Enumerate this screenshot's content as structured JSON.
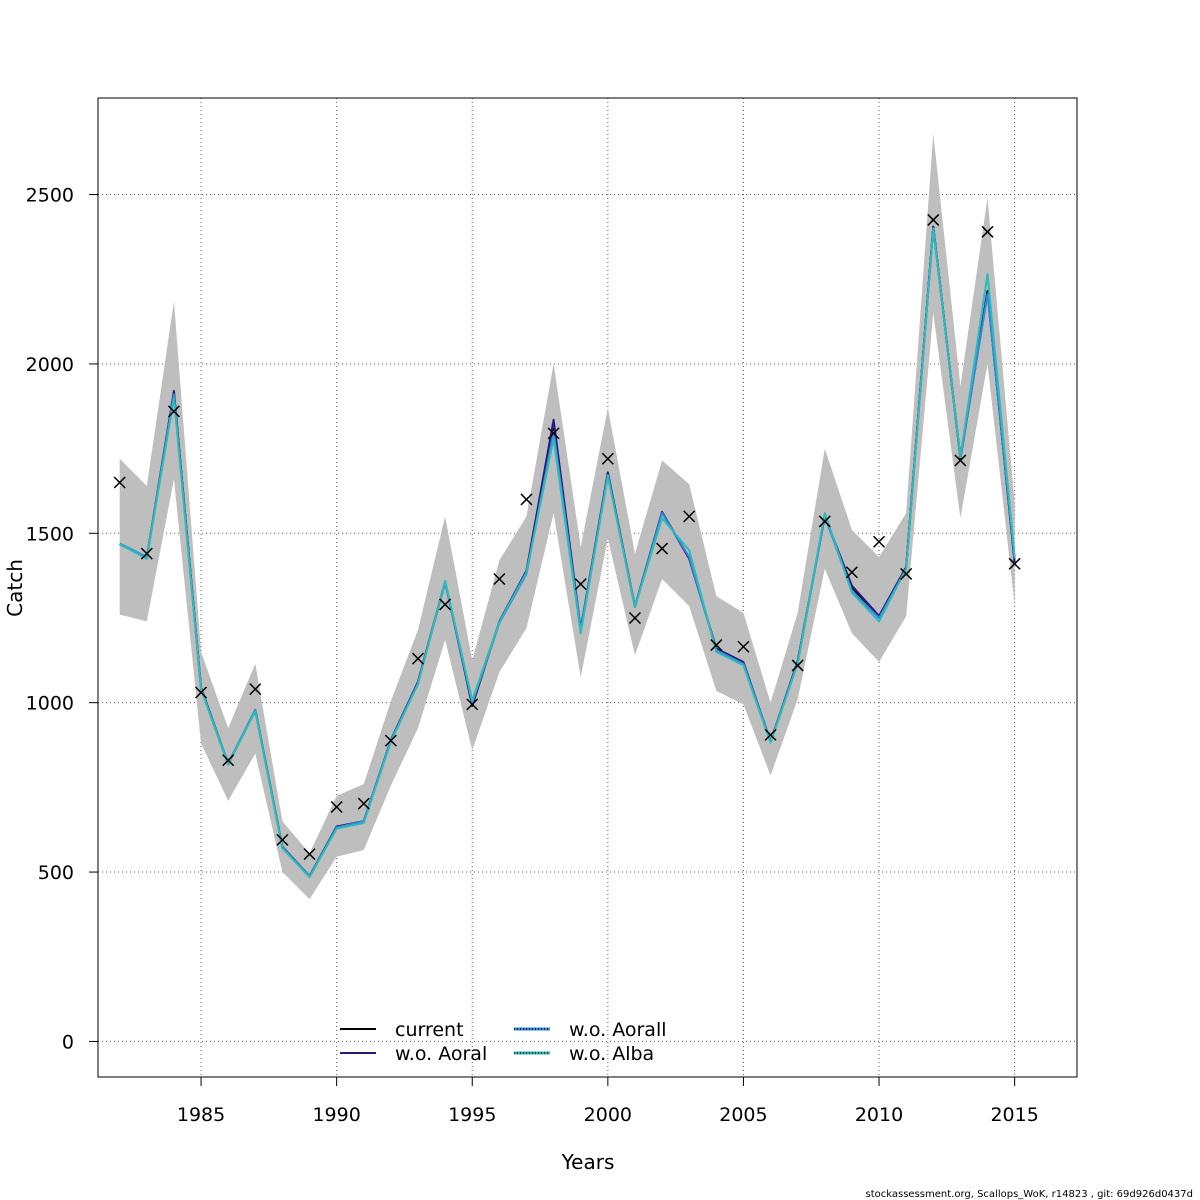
{
  "chart_data": {
    "type": "line",
    "title": "",
    "xlabel": "Years",
    "ylabel": "Catch",
    "xlim": [
      1981.2,
      2017.3
    ],
    "ylim": [
      -105,
      2785
    ],
    "xticks": [
      1985,
      1990,
      1995,
      2000,
      2005,
      2010,
      2015
    ],
    "yticks": [
      0,
      500,
      1000,
      1500,
      2000,
      2500
    ],
    "grid": true,
    "legend_position": "bottom-center",
    "x": [
      1982,
      1983,
      1984,
      1985,
      1986,
      1987,
      1988,
      1989,
      1990,
      1991,
      1992,
      1993,
      1994,
      1995,
      1996,
      1997,
      1998,
      1999,
      2000,
      2001,
      2002,
      2003,
      2004,
      2005,
      2006,
      2007,
      2008,
      2009,
      2010,
      2011,
      2012,
      2013,
      2014,
      2015
    ],
    "band": {
      "color": "#bebebe",
      "upper": [
        1720,
        1640,
        2185,
        1150,
        925,
        1115,
        650,
        555,
        725,
        760,
        1005,
        1215,
        1550,
        1125,
        1420,
        1550,
        2000,
        1460,
        1870,
        1440,
        1715,
        1645,
        1315,
        1265,
        1000,
        1265,
        1750,
        1510,
        1430,
        1560,
        2680,
        1935,
        2490,
        1590
      ],
      "lower": [
        1260,
        1240,
        1660,
        880,
        710,
        850,
        500,
        420,
        545,
        565,
        755,
        925,
        1185,
        860,
        1090,
        1220,
        1560,
        1075,
        1485,
        1140,
        1365,
        1285,
        1035,
        995,
        785,
        1010,
        1395,
        1205,
        1120,
        1255,
        2150,
        1545,
        2000,
        1290
      ]
    },
    "series": [
      {
        "name": "current",
        "color": "#000000",
        "dash": "solid",
        "values": [
          1468,
          1428,
          1915,
          1042,
          818,
          978,
          573,
          487,
          634,
          650,
          888,
          1060,
          1356,
          1003,
          1238,
          1385,
          1808,
          1215,
          1676,
          1283,
          1562,
          1428,
          1158,
          1118,
          885,
          1120,
          1552,
          1340,
          1254,
          1400,
          2405,
          1725,
          2215,
          1415
        ]
      },
      {
        "name": "w.o. Aoral",
        "color": "#2c1778",
        "dash": "solid",
        "values": [
          1468,
          1428,
          1920,
          1045,
          820,
          978,
          575,
          488,
          634,
          650,
          890,
          1062,
          1358,
          990,
          1240,
          1390,
          1835,
          1218,
          1680,
          1284,
          1563,
          1425,
          1160,
          1120,
          885,
          1123,
          1550,
          1345,
          1256,
          1400,
          2405,
          1720,
          2210,
          1415
        ]
      },
      {
        "name": "w.o. Aorall",
        "color": "#3388dd",
        "dash": "dotted",
        "values": [
          1470,
          1430,
          1910,
          1040,
          820,
          978,
          573,
          487,
          632,
          650,
          888,
          1058,
          1355,
          1000,
          1235,
          1380,
          1800,
          1215,
          1672,
          1282,
          1560,
          1430,
          1155,
          1115,
          885,
          1118,
          1550,
          1330,
          1250,
          1395,
          2400,
          1725,
          2205,
          1425
        ]
      },
      {
        "name": "w.o. Alba",
        "color": "#2bbbbb",
        "dash": "dotted",
        "values": [
          1468,
          1425,
          1900,
          1040,
          818,
          975,
          570,
          485,
          628,
          645,
          885,
          1055,
          1360,
          1005,
          1238,
          1385,
          1780,
          1205,
          1670,
          1283,
          1545,
          1450,
          1150,
          1110,
          882,
          1115,
          1560,
          1325,
          1240,
          1395,
          2400,
          1725,
          2265,
          1430
        ]
      }
    ],
    "observed": {
      "marker": "x",
      "values": [
        1650,
        1440,
        1860,
        1030,
        830,
        1040,
        595,
        553,
        692,
        702,
        888,
        1130,
        1290,
        995,
        1365,
        1600,
        1795,
        1350,
        1720,
        1250,
        1455,
        1550,
        1170,
        1165,
        905,
        1110,
        1535,
        1385,
        1475,
        1380,
        2425,
        1715,
        2390,
        1410
      ]
    }
  },
  "footer": "stockassessment.org, Scallops_WoK, r14823 , git: 69d926d0437d"
}
